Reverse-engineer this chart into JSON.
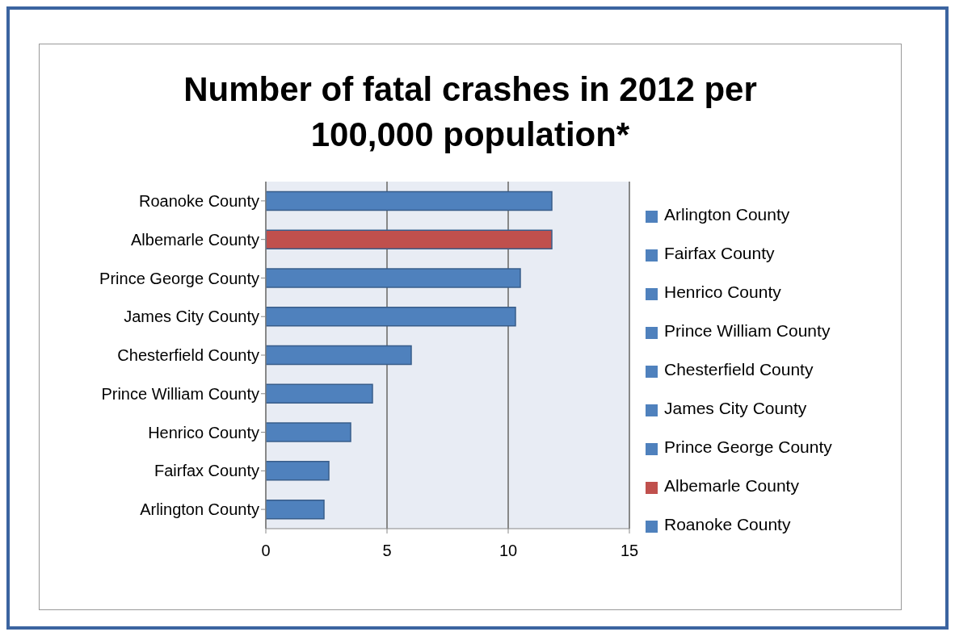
{
  "chart_data": {
    "type": "bar",
    "orientation": "horizontal",
    "stacked": true,
    "title": "Number of fatal crashes in 2012 per 100,000 population*",
    "categories": [
      "Roanoke County",
      "Albemarle County",
      "Prince George County",
      "James City  County",
      "Chesterfield County",
      "Prince William County",
      "Henrico County",
      "Fairfax County",
      "Arlington County"
    ],
    "series": [
      {
        "name": "Arlington County",
        "color": "#4f81bd",
        "values": [
          null,
          null,
          null,
          null,
          null,
          null,
          null,
          null,
          2.4
        ]
      },
      {
        "name": "Fairfax County",
        "color": "#4f81bd",
        "values": [
          null,
          null,
          null,
          null,
          null,
          null,
          null,
          2.6,
          null
        ]
      },
      {
        "name": "Henrico County",
        "color": "#4f81bd",
        "values": [
          null,
          null,
          null,
          null,
          null,
          null,
          3.5,
          null,
          null
        ]
      },
      {
        "name": "Prince William County",
        "color": "#4f81bd",
        "values": [
          null,
          null,
          null,
          null,
          null,
          4.4,
          null,
          null,
          null
        ]
      },
      {
        "name": "Chesterfield County",
        "color": "#4f81bd",
        "values": [
          null,
          null,
          null,
          null,
          6.0,
          null,
          null,
          null,
          null
        ]
      },
      {
        "name": "James City  County",
        "color": "#4f81bd",
        "values": [
          null,
          null,
          null,
          10.3,
          null,
          null,
          null,
          null,
          null
        ]
      },
      {
        "name": "Prince George County",
        "color": "#4f81bd",
        "values": [
          null,
          null,
          10.5,
          null,
          null,
          null,
          null,
          null,
          null
        ]
      },
      {
        "name": "Albemarle County",
        "color": "#c0504d",
        "values": [
          null,
          11.8,
          null,
          null,
          null,
          null,
          null,
          null,
          null
        ]
      },
      {
        "name": "Roanoke County",
        "color": "#4f81bd",
        "values": [
          11.8,
          null,
          null,
          null,
          null,
          null,
          null,
          null,
          null
        ]
      }
    ],
    "xlim": [
      0,
      15
    ],
    "xticks": [
      0,
      5,
      10,
      15
    ],
    "grid": "x",
    "legend": "right"
  }
}
